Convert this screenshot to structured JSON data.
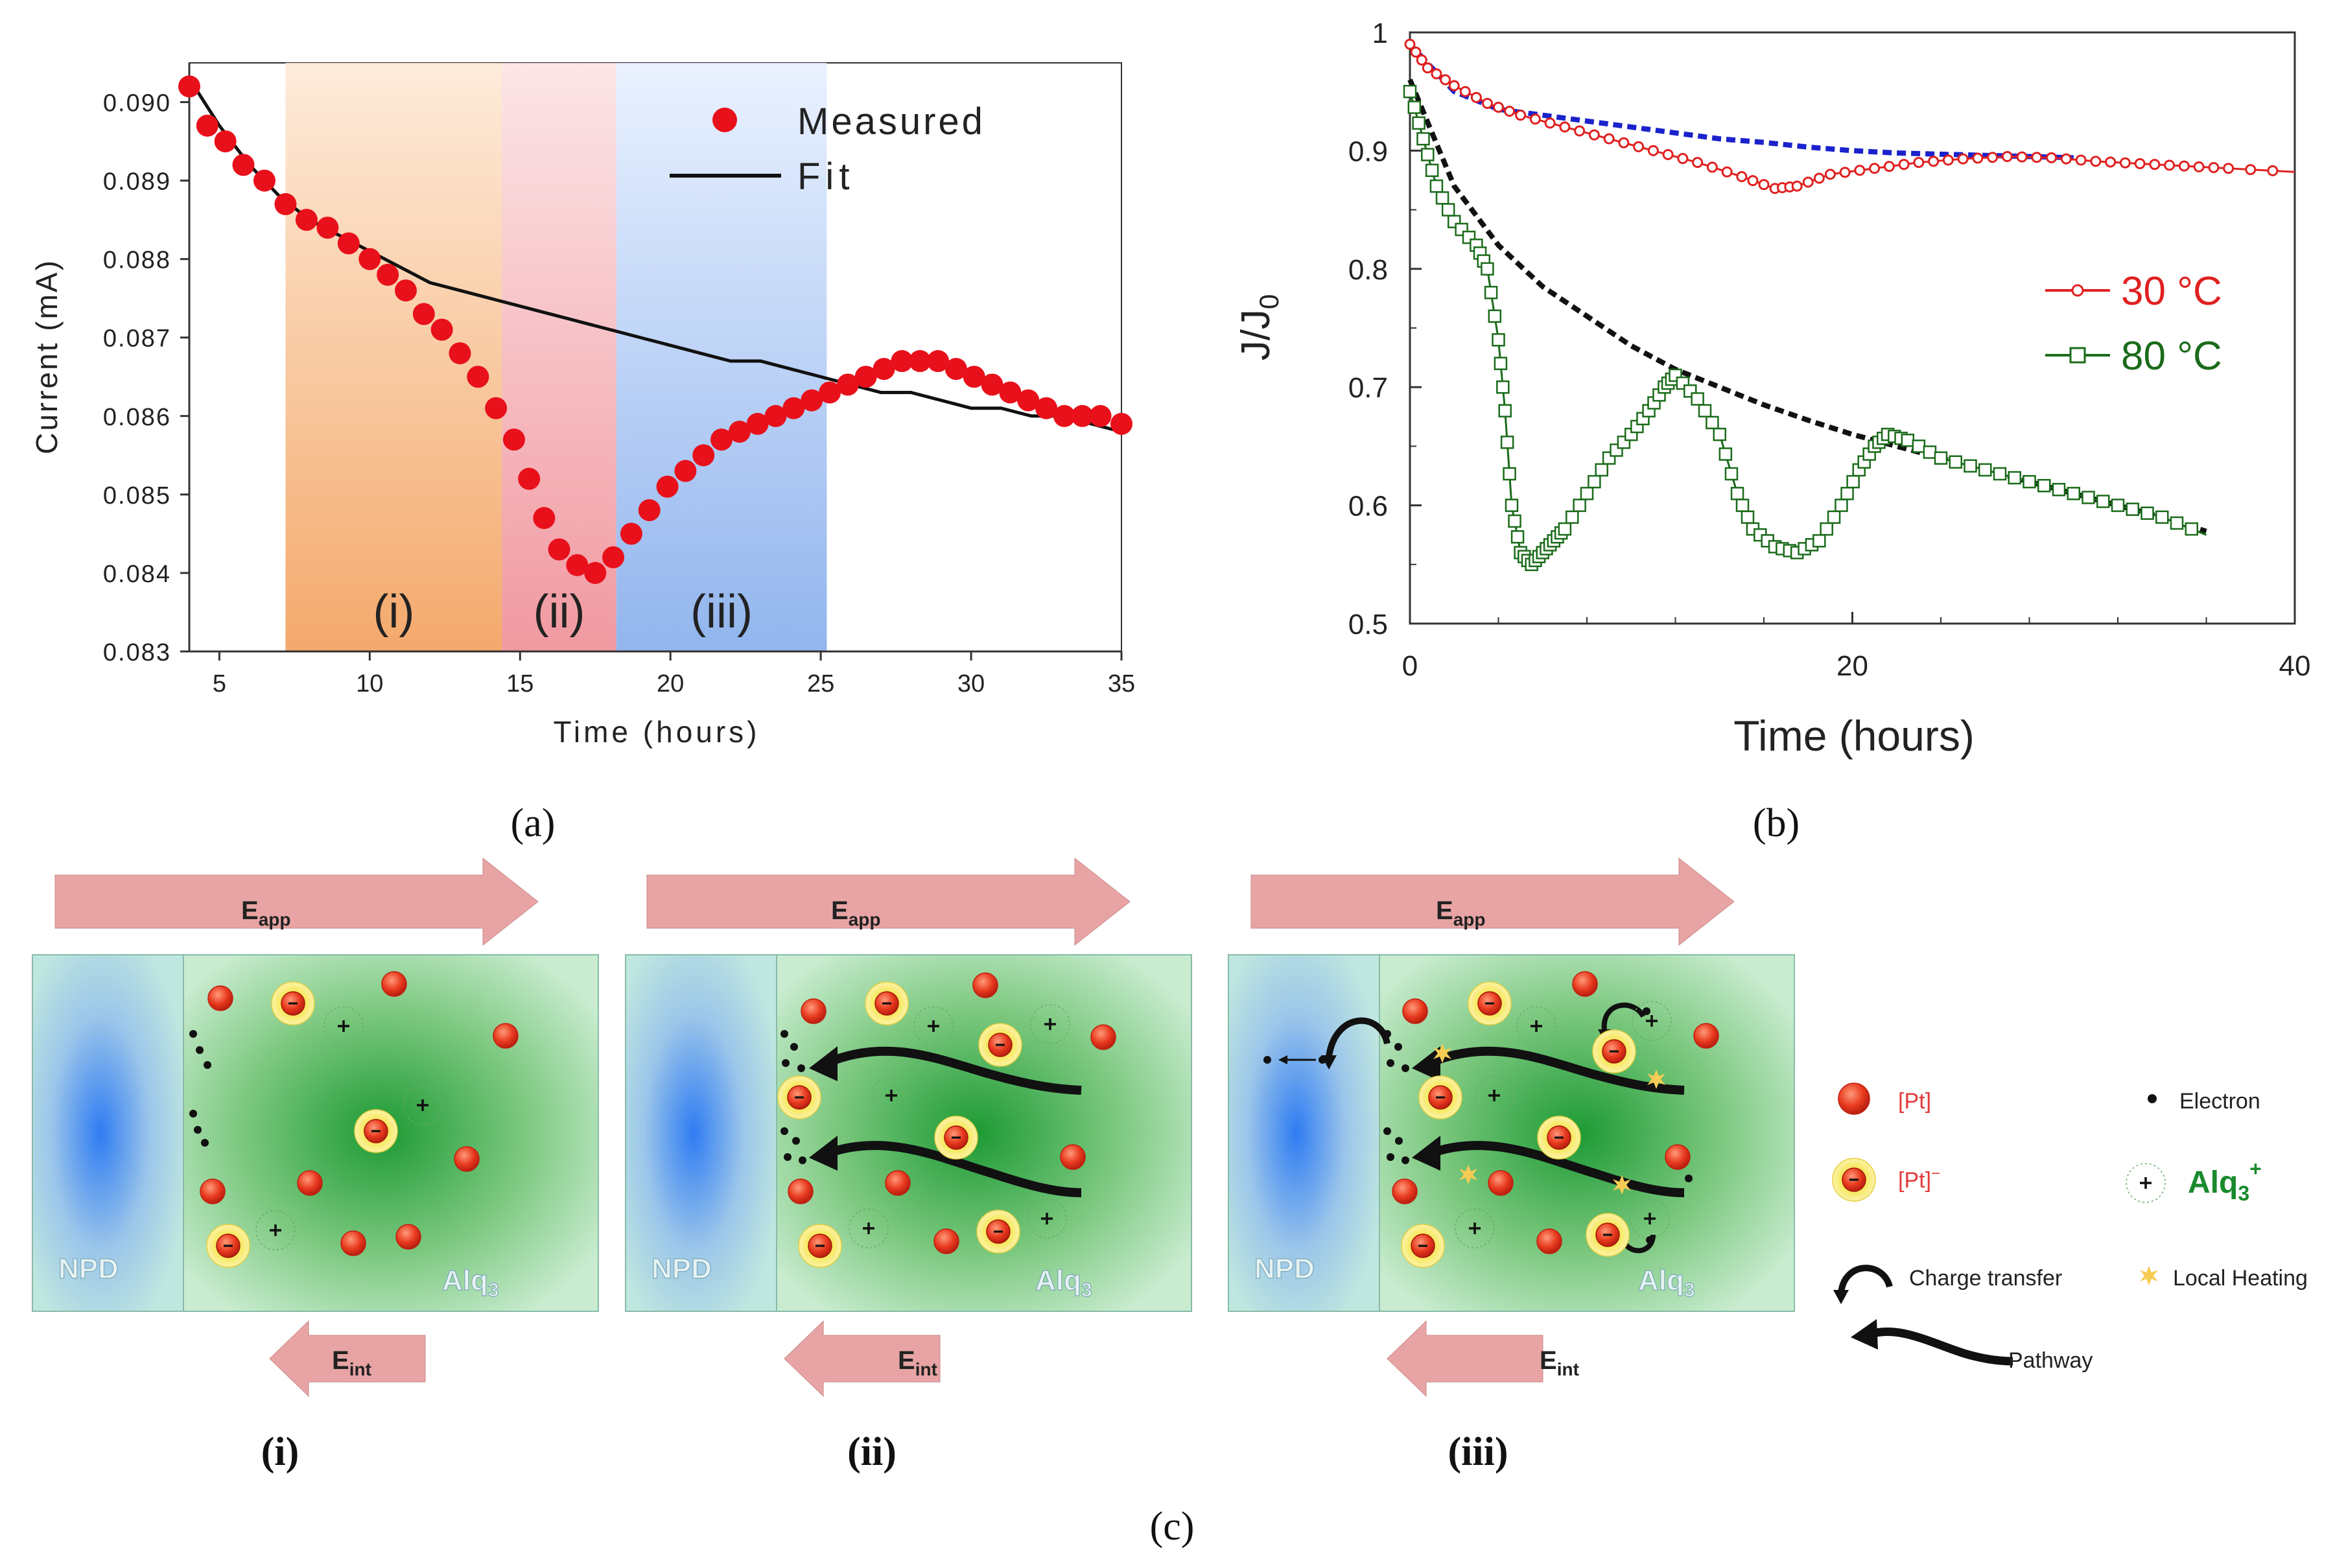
{
  "chart_data": [
    {
      "type": "scatter",
      "panel": "(a)",
      "xlabel": "Time (hours)",
      "ylabel": "Current (mA)",
      "xlim": [
        4,
        35
      ],
      "ylim": [
        0.083,
        0.0905
      ],
      "xticks": [
        "5",
        "10",
        "15",
        "20",
        "25",
        "30",
        "35"
      ],
      "yticks": [
        "0.083",
        "0.084",
        "0.085",
        "0.086",
        "0.087",
        "0.088",
        "0.089",
        "0.090"
      ],
      "legend": [
        "Measured",
        "Fit"
      ],
      "regions": [
        {
          "label": "(i)",
          "from": 7.2,
          "to": 14.4,
          "color": "#f0a060"
        },
        {
          "label": "(ii)",
          "from": 14.4,
          "to": 18.2,
          "color": "#ee8a94"
        },
        {
          "label": "(iii)",
          "from": 18.2,
          "to": 25.2,
          "color": "#8db4ea"
        }
      ],
      "measured": {
        "x": [
          4,
          4.6,
          5.2,
          5.8,
          6.5,
          7.2,
          7.9,
          8.6,
          9.3,
          10,
          10.6,
          11.2,
          11.8,
          12.4,
          13,
          13.6,
          14.2,
          14.8,
          15.3,
          15.8,
          16.3,
          16.9,
          17.5,
          18.1,
          18.7,
          19.3,
          19.9,
          20.5,
          21.1,
          21.7,
          22.3,
          22.9,
          23.5,
          24.1,
          24.7,
          25.3,
          25.9,
          26.5,
          27.1,
          27.7,
          28.3,
          28.9,
          29.5,
          30.1,
          30.7,
          31.3,
          31.9,
          32.5,
          33.1,
          33.7,
          34.3,
          35
        ],
        "y": [
          0.0902,
          0.0897,
          0.0895,
          0.0892,
          0.089,
          0.0887,
          0.0885,
          0.0884,
          0.0882,
          0.088,
          0.0878,
          0.0876,
          0.0873,
          0.0871,
          0.0868,
          0.0865,
          0.0861,
          0.0857,
          0.0852,
          0.0847,
          0.0843,
          0.0841,
          0.084,
          0.0842,
          0.0845,
          0.0848,
          0.0851,
          0.0853,
          0.0855,
          0.0857,
          0.0858,
          0.0859,
          0.086,
          0.0861,
          0.0862,
          0.0863,
          0.0864,
          0.0865,
          0.0866,
          0.0867,
          0.0867,
          0.0867,
          0.0866,
          0.0865,
          0.0864,
          0.0863,
          0.0862,
          0.0861,
          0.086,
          0.086,
          0.086,
          0.0859
        ]
      },
      "fit": {
        "x": [
          4,
          5,
          6,
          7,
          8,
          9,
          10,
          11,
          12,
          13,
          14,
          15,
          16,
          17,
          18,
          19,
          20,
          21,
          22,
          23,
          24,
          25,
          26,
          27,
          28,
          29,
          30,
          31,
          32,
          33,
          34,
          35
        ],
        "y": [
          0.0903,
          0.0897,
          0.0892,
          0.0888,
          0.0885,
          0.0883,
          0.0881,
          0.0879,
          0.0877,
          0.0876,
          0.0875,
          0.0874,
          0.0873,
          0.0872,
          0.0871,
          0.087,
          0.0869,
          0.0868,
          0.0867,
          0.0867,
          0.0866,
          0.0865,
          0.0864,
          0.0863,
          0.0863,
          0.0862,
          0.0861,
          0.0861,
          0.086,
          0.086,
          0.0859,
          0.0858
        ]
      }
    },
    {
      "type": "line",
      "panel": "(b)",
      "xlabel": "Time (hours)",
      "ylabel": "J/J",
      "ylabel_sub": "0",
      "xlim": [
        0,
        40
      ],
      "ylim": [
        0.5,
        1.0
      ],
      "xticks": [
        "0",
        "20",
        "40"
      ],
      "yticks": [
        "0.5",
        "0.6",
        "0.7",
        "0.8",
        "0.9",
        "1"
      ],
      "series": [
        {
          "name": "30 °C",
          "color": "#e02020",
          "marker": "circle",
          "x": [
            0,
            0.8,
            2,
            3.5,
            5,
            7,
            9,
            11,
            13,
            15,
            16.5,
            17.5,
            19,
            21,
            23,
            25,
            27,
            29,
            31,
            33,
            35,
            37,
            40
          ],
          "y": [
            0.99,
            0.97,
            0.955,
            0.94,
            0.93,
            0.92,
            0.91,
            0.9,
            0.89,
            0.878,
            0.868,
            0.87,
            0.88,
            0.885,
            0.89,
            0.893,
            0.895,
            0.894,
            0.891,
            0.889,
            0.887,
            0.885,
            0.882
          ]
        },
        {
          "name": "80 °C",
          "color": "#1a6b1a",
          "marker": "square",
          "x": [
            0,
            0.6,
            1.2,
            2,
            3,
            3.5,
            4,
            4.3,
            4.6,
            5,
            5.5,
            6,
            6.5,
            7,
            8,
            9,
            10,
            10.8,
            11.5,
            12,
            13,
            14,
            14.8,
            15.5,
            16.5,
            17.5,
            18.5,
            19.5,
            20.3,
            21,
            21.6,
            22.5,
            24,
            26,
            28,
            30,
            32,
            34,
            36
          ],
          "y": [
            0.95,
            0.91,
            0.87,
            0.84,
            0.82,
            0.8,
            0.74,
            0.68,
            0.6,
            0.56,
            0.55,
            0.56,
            0.57,
            0.58,
            0.61,
            0.64,
            0.66,
            0.68,
            0.7,
            0.71,
            0.69,
            0.66,
            0.61,
            0.58,
            0.565,
            0.56,
            0.57,
            0.6,
            0.63,
            0.65,
            0.66,
            0.655,
            0.64,
            0.63,
            0.62,
            0.61,
            0.6,
            0.59,
            0.575
          ]
        },
        {
          "name": "fit 30 °C",
          "color": "#1a22cc",
          "marker": "none",
          "style": "dashed",
          "x": [
            0,
            2,
            4,
            6,
            8,
            10,
            12,
            14,
            16,
            18,
            20,
            22,
            24,
            26,
            28,
            30
          ],
          "y": [
            0.99,
            0.95,
            0.935,
            0.93,
            0.925,
            0.92,
            0.915,
            0.91,
            0.907,
            0.903,
            0.9,
            0.898,
            0.897,
            0.896,
            0.895,
            0.894
          ]
        },
        {
          "name": "fit 80 °C",
          "color": "#111111",
          "marker": "none",
          "style": "dashed",
          "x": [
            0,
            2,
            4,
            6,
            8,
            10,
            12,
            14,
            16,
            18,
            20,
            22,
            24,
            26,
            28,
            30,
            32,
            34,
            36
          ],
          "y": [
            0.96,
            0.87,
            0.82,
            0.785,
            0.76,
            0.735,
            0.715,
            0.7,
            0.685,
            0.672,
            0.66,
            0.65,
            0.64,
            0.63,
            0.62,
            0.61,
            0.6,
            0.59,
            0.578
          ]
        }
      ]
    }
  ],
  "captions": {
    "a": "(a)",
    "b": "(b)",
    "c": "(c)",
    "i": "(i)",
    "ii": "(ii)",
    "iii": "(iii)"
  },
  "diagram": {
    "eapp_main": "E",
    "eapp_sub": "app",
    "eint_main": "E",
    "eint_sub": "int",
    "npd": "NPD",
    "alq_main": "Alq",
    "alq_sub": "3",
    "minus": "−",
    "plus": "+"
  },
  "diagram_legend": {
    "pt": "[Pt]",
    "pt_minus_main": "[Pt]",
    "pt_minus_sup": "−",
    "electron": "Electron",
    "alq_main": "Alq",
    "alq_sub": "3",
    "alq_sup": "+",
    "charge_transfer": "Charge transfer",
    "local_heating": "Local Heating",
    "pathway": "Pathway"
  },
  "colors": {
    "measured": "#e8101a",
    "fit": "#111111",
    "arrow_fill": "#e8a4a4",
    "npd_blue": "#3f86ee",
    "alq_green": "#1f9b3a",
    "legend_green": "#1a8a2e"
  }
}
